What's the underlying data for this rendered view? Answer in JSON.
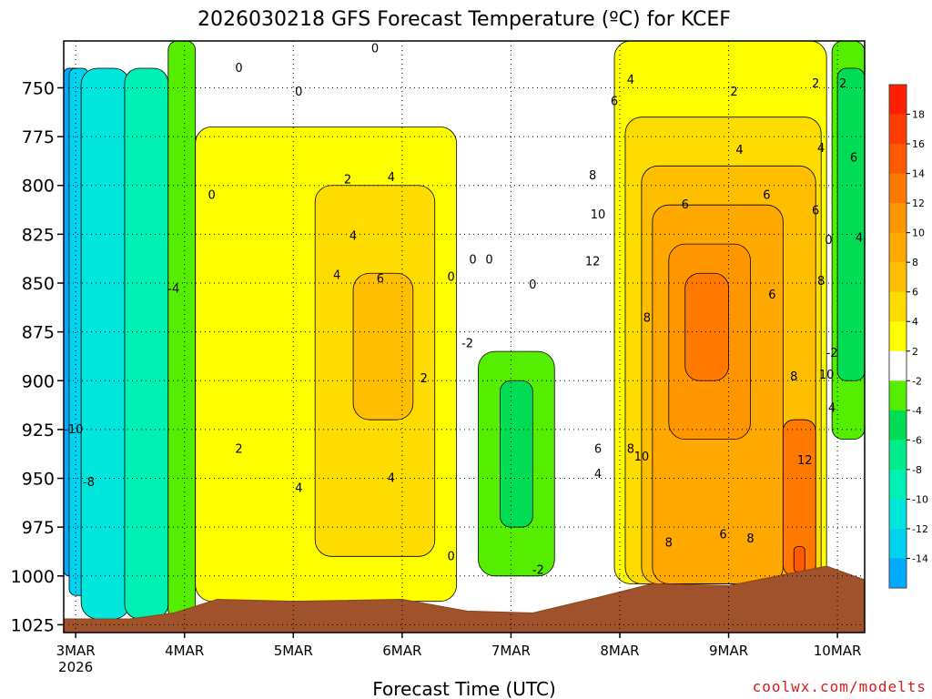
{
  "chart_data": {
    "type": "heatmap",
    "title": "2026030218 GFS Forecast Temperature (ºC) for KCEF",
    "xlabel": "Forecast Time (UTC)",
    "ylabel": "",
    "watermark": "coolwx.com/modelts",
    "x_ticks": [
      {
        "label": "3MAR",
        "sublabel": "2026",
        "day": 0.0
      },
      {
        "label": "4MAR",
        "sublabel": "",
        "day": 1.0
      },
      {
        "label": "5MAR",
        "sublabel": "",
        "day": 2.0
      },
      {
        "label": "6MAR",
        "sublabel": "",
        "day": 3.0
      },
      {
        "label": "7MAR",
        "sublabel": "",
        "day": 4.0
      },
      {
        "label": "8MAR",
        "sublabel": "",
        "day": 5.0
      },
      {
        "label": "9MAR",
        "sublabel": "",
        "day": 6.0
      },
      {
        "label": "10MAR",
        "sublabel": "",
        "day": 7.0
      }
    ],
    "xlim_days": [
      -0.11,
      7.25
    ],
    "y_ticks": [
      750,
      775,
      800,
      825,
      850,
      875,
      900,
      925,
      950,
      975,
      1000,
      1025
    ],
    "ylim_hpa": [
      1029,
      726
    ],
    "colorbar": {
      "labels": [
        18,
        16,
        14,
        12,
        10,
        8,
        6,
        4,
        2,
        -2,
        -4,
        -6,
        -8,
        -10,
        -12,
        -14
      ],
      "colors": [
        "#ff1e00",
        "#ff3c00",
        "#ff5a00",
        "#ff7800",
        "#ff9600",
        "#ffa800",
        "#ffbe00",
        "#ffdc00",
        "#ffff00",
        "#ffffff",
        "#55ee00",
        "#00dd55",
        "#00eb8a",
        "#00f0b4",
        "#00e6dc",
        "#00d2f0",
        "#00aaff"
      ]
    },
    "surface_pressure_hpa": [
      {
        "day": -0.11,
        "p": 1022
      },
      {
        "day": 0.5,
        "p": 1022
      },
      {
        "day": 0.9,
        "p": 1019
      },
      {
        "day": 1.3,
        "p": 1012
      },
      {
        "day": 2.0,
        "p": 1013
      },
      {
        "day": 3.0,
        "p": 1012
      },
      {
        "day": 3.6,
        "p": 1018
      },
      {
        "day": 4.2,
        "p": 1019
      },
      {
        "day": 4.8,
        "p": 1011
      },
      {
        "day": 5.3,
        "p": 1004
      },
      {
        "day": 6.0,
        "p": 1005
      },
      {
        "day": 6.9,
        "p": 995
      },
      {
        "day": 7.25,
        "p": 1002
      }
    ],
    "temperature_regions": [
      {
        "t": -14,
        "color": "#00aaff",
        "day": [
          -0.11,
          0.04
        ],
        "p": [
          740,
          1000
        ]
      },
      {
        "t": -12,
        "color": "#00d2f0",
        "day": [
          -0.06,
          0.12
        ],
        "p": [
          740,
          1010
        ]
      },
      {
        "t": -10,
        "color": "#00e6dc",
        "day": [
          0.05,
          0.5
        ],
        "p": [
          740,
          1022
        ]
      },
      {
        "t": -8,
        "color": "#00f0b4",
        "day": [
          0.45,
          0.85
        ],
        "p": [
          740,
          1022
        ]
      },
      {
        "t": -4,
        "color": "#55ee00",
        "day": [
          0.85,
          1.1
        ],
        "p": [
          726,
          1022
        ]
      },
      {
        "t": 2,
        "color": "#ffff00",
        "day": [
          1.1,
          3.5
        ],
        "p": [
          770,
          1013
        ]
      },
      {
        "t": 4,
        "color": "#ffdc00",
        "day": [
          2.2,
          3.3
        ],
        "p": [
          800,
          990
        ]
      },
      {
        "t": 6,
        "color": "#ffbe00",
        "day": [
          2.55,
          3.1
        ],
        "p": [
          845,
          920
        ]
      },
      {
        "t": -4,
        "color": "#55ee00",
        "day": [
          3.7,
          4.4
        ],
        "p": [
          885,
          1000
        ]
      },
      {
        "t": -6,
        "color": "#00dd55",
        "day": [
          3.9,
          4.2
        ],
        "p": [
          900,
          975
        ]
      },
      {
        "t": 2,
        "color": "#ffff00",
        "day": [
          4.95,
          6.9
        ],
        "p": [
          726,
          1004
        ]
      },
      {
        "t": 4,
        "color": "#ffdc00",
        "day": [
          5.05,
          6.85
        ],
        "p": [
          765,
          1004
        ]
      },
      {
        "t": 6,
        "color": "#ffbe00",
        "day": [
          5.2,
          6.8
        ],
        "p": [
          790,
          1004
        ]
      },
      {
        "t": 8,
        "color": "#ffa800",
        "day": [
          5.3,
          6.5
        ],
        "p": [
          810,
          1004
        ]
      },
      {
        "t": 10,
        "color": "#ff9600",
        "day": [
          5.45,
          6.2
        ],
        "p": [
          830,
          930
        ]
      },
      {
        "t": 12,
        "color": "#ff7800",
        "day": [
          5.6,
          6.0
        ],
        "p": [
          845,
          900
        ]
      },
      {
        "t": 12,
        "color": "#ff7800",
        "day": [
          6.5,
          6.8
        ],
        "p": [
          920,
          1000
        ]
      },
      {
        "t": 14,
        "color": "#ff5a00",
        "day": [
          6.6,
          6.7
        ],
        "p": [
          985,
          998
        ]
      },
      {
        "t": -4,
        "color": "#55ee00",
        "day": [
          6.95,
          7.25
        ],
        "p": [
          726,
          930
        ]
      },
      {
        "t": -6,
        "color": "#00dd55",
        "day": [
          7.0,
          7.25
        ],
        "p": [
          740,
          900
        ]
      }
    ],
    "contour_labels": [
      {
        "text": "0",
        "day": 1.25,
        "p": 805
      },
      {
        "text": "0",
        "day": 1.5,
        "p": 740
      },
      {
        "text": "0",
        "day": 2.05,
        "p": 752
      },
      {
        "text": "0",
        "day": 2.75,
        "p": 730
      },
      {
        "text": "0",
        "day": 3.45,
        "p": 847
      },
      {
        "text": "0",
        "day": 3.8,
        "p": 838
      },
      {
        "text": "0",
        "day": 3.45,
        "p": 990
      },
      {
        "text": "-2",
        "day": 3.6,
        "p": 881
      },
      {
        "text": "-2",
        "day": 4.25,
        "p": 997
      },
      {
        "text": "2",
        "day": 1.5,
        "p": 935
      },
      {
        "text": "2",
        "day": 2.5,
        "p": 797
      },
      {
        "text": "2",
        "day": 3.2,
        "p": 899
      },
      {
        "text": "4",
        "day": 2.55,
        "p": 826
      },
      {
        "text": "4",
        "day": 2.4,
        "p": 846
      },
      {
        "text": "4",
        "day": 2.05,
        "p": 955
      },
      {
        "text": "4",
        "day": 2.9,
        "p": 796
      },
      {
        "text": "4",
        "day": 2.9,
        "p": 950
      },
      {
        "text": "6",
        "day": 2.8,
        "p": 848
      },
      {
        "text": "-4",
        "day": 0.9,
        "p": 853
      },
      {
        "text": "-10",
        "day": -0.02,
        "p": 925
      },
      {
        "text": "-8",
        "day": 0.12,
        "p": 952
      },
      {
        "text": "4",
        "day": 5.1,
        "p": 746
      },
      {
        "text": "6",
        "day": 4.95,
        "p": 757
      },
      {
        "text": "8",
        "day": 4.75,
        "p": 795
      },
      {
        "text": "10",
        "day": 4.8,
        "p": 815
      },
      {
        "text": "12",
        "day": 4.75,
        "p": 839
      },
      {
        "text": "8",
        "day": 5.25,
        "p": 868
      },
      {
        "text": "8",
        "day": 5.1,
        "p": 935
      },
      {
        "text": "10",
        "day": 5.2,
        "p": 939
      },
      {
        "text": "6",
        "day": 4.8,
        "p": 935
      },
      {
        "text": "4",
        "day": 4.8,
        "p": 948
      },
      {
        "text": "8",
        "day": 5.45,
        "p": 983
      },
      {
        "text": "6",
        "day": 5.6,
        "p": 810
      },
      {
        "text": "2",
        "day": 6.05,
        "p": 752
      },
      {
        "text": "4",
        "day": 6.1,
        "p": 782
      },
      {
        "text": "6",
        "day": 6.35,
        "p": 805
      },
      {
        "text": "6",
        "day": 6.4,
        "p": 856
      },
      {
        "text": "6",
        "day": 5.95,
        "p": 979
      },
      {
        "text": "8",
        "day": 6.2,
        "p": 981
      },
      {
        "text": "8",
        "day": 6.6,
        "p": 898
      },
      {
        "text": "12",
        "day": 6.7,
        "p": 941
      },
      {
        "text": "10",
        "day": 6.9,
        "p": 897
      },
      {
        "text": "6",
        "day": 6.8,
        "p": 813
      },
      {
        "text": "4",
        "day": 6.85,
        "p": 781
      },
      {
        "text": "2",
        "day": 6.8,
        "p": 748
      },
      {
        "text": "8",
        "day": 6.85,
        "p": 849
      },
      {
        "text": "0",
        "day": 6.92,
        "p": 828
      },
      {
        "text": "-2",
        "day": 6.95,
        "p": 886
      },
      {
        "text": "4",
        "day": 6.95,
        "p": 914
      },
      {
        "text": "2",
        "day": 7.05,
        "p": 748
      },
      {
        "text": "6",
        "day": 7.15,
        "p": 786
      },
      {
        "text": "4",
        "day": 7.2,
        "p": 827
      },
      {
        "text": "0",
        "day": 4.2,
        "p": 851
      },
      {
        "text": "0",
        "day": 3.65,
        "p": 838
      }
    ]
  }
}
